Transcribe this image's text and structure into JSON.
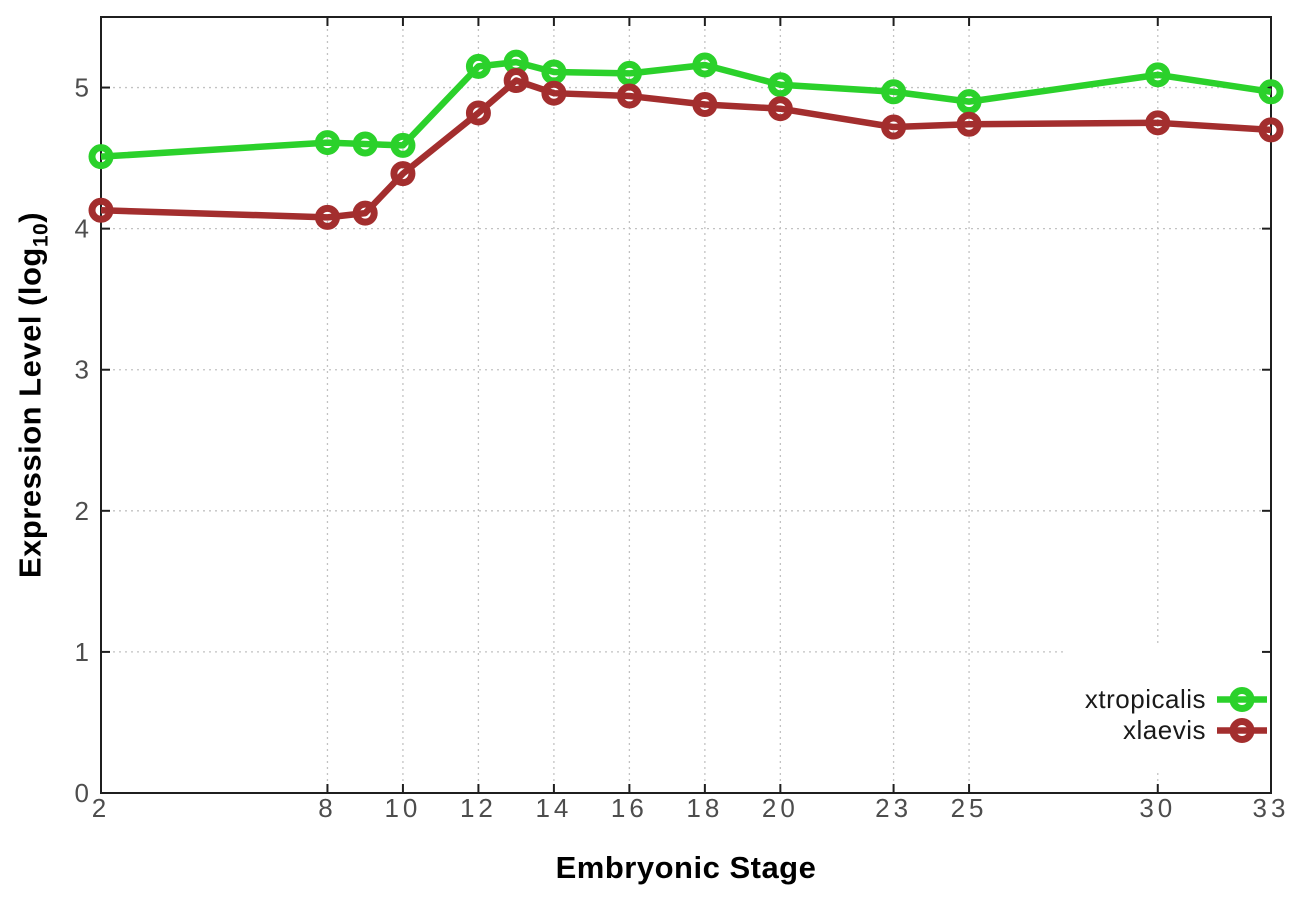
{
  "chart_data": {
    "type": "line",
    "title": "",
    "xlabel": "Embryonic Stage",
    "ylabel_parts": {
      "prefix": "Expression Level (log",
      "sub": "10",
      "suffix": ")"
    },
    "x": [
      2,
      8,
      9,
      10,
      12,
      13,
      14,
      16,
      18,
      20,
      23,
      25,
      30,
      33
    ],
    "series": [
      {
        "name": "xtropicalis",
        "color": "#2bd12b",
        "values": [
          4.51,
          4.61,
          4.6,
          4.59,
          5.15,
          5.18,
          5.11,
          5.1,
          5.16,
          5.02,
          4.97,
          4.9,
          5.09,
          4.97
        ]
      },
      {
        "name": "xlaevis",
        "color": "#a32e2e",
        "values": [
          4.13,
          4.08,
          4.11,
          4.39,
          4.82,
          5.05,
          4.96,
          4.94,
          4.88,
          4.85,
          4.72,
          4.74,
          4.75,
          4.7
        ]
      }
    ],
    "xlim": [
      2,
      33
    ],
    "ylim": [
      0,
      5.5
    ],
    "x_ticks": [
      2,
      8,
      10,
      12,
      14,
      16,
      18,
      20,
      23,
      25,
      30,
      33
    ],
    "y_ticks": [
      0,
      1,
      2,
      3,
      4,
      5
    ],
    "grid": true,
    "legend_position": "bottom-right",
    "marker": "open-circle",
    "colors": {
      "grid": "#c2c2c2",
      "axis": "#1f1f1f",
      "tick_label": "#4d4d4d",
      "legend_box": "#ffffff"
    }
  }
}
